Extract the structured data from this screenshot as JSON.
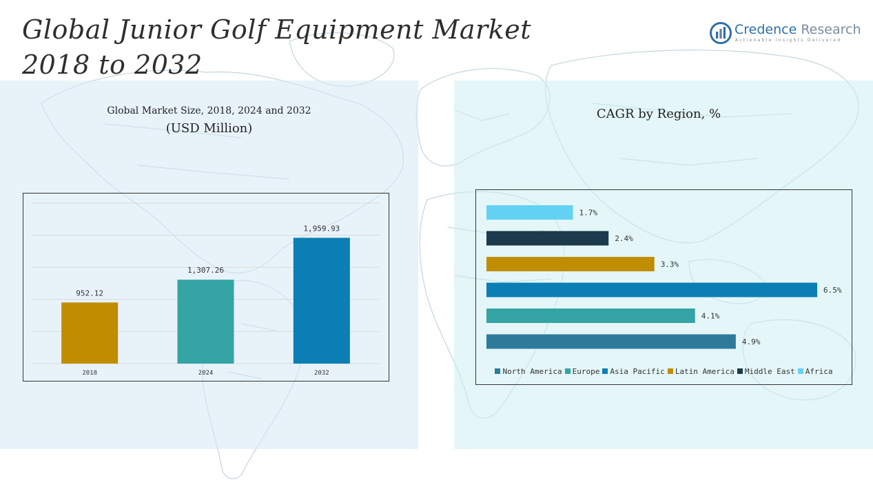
{
  "title": {
    "line1": "Global Junior Golf Equipment Market",
    "line2": "2018 to 2032"
  },
  "brand": {
    "name_part1": "Credence",
    "name_part2": "Research",
    "tagline": "Actionable Insights Delivered",
    "icon": "credence-logo-icon",
    "color": "#2e6fa7"
  },
  "colors": {
    "left_panel": "#d6e8f4",
    "right_panel": "#ceeef0",
    "north_america": "#2e7a9a",
    "europe": "#34a4a4",
    "asia_pacific": "#0b7fb4",
    "latin_america": "#c08c00",
    "middle_east": "#1b3a4b",
    "africa": "#63d2f5"
  },
  "chart_data": [
    {
      "type": "bar",
      "title": "Global Market Size, 2018, 2024 and 2032",
      "subtitle": "(USD Million)",
      "categories": [
        "2018",
        "2024",
        "2032"
      ],
      "values": [
        952.12,
        1307.26,
        1959.93
      ],
      "value_labels": [
        "952.12",
        "1,307.26",
        "1,959.93"
      ],
      "bar_colors": [
        "#c08c00",
        "#34a4a4",
        "#0b7fb4"
      ],
      "ylim": [
        0,
        2500
      ],
      "grid": true,
      "legend": "none"
    },
    {
      "type": "bar",
      "orientation": "horizontal",
      "title": "CAGR by Region, %",
      "series": [
        {
          "name": "North America",
          "value": 4.9,
          "label": "4.9%",
          "color": "#2e7a9a"
        },
        {
          "name": "Europe",
          "value": 4.1,
          "label": "4.1%",
          "color": "#34a4a4"
        },
        {
          "name": "Asia Pacific",
          "value": 6.5,
          "label": "6.5%",
          "color": "#0b7fb4"
        },
        {
          "name": "Latin America",
          "value": 3.3,
          "label": "3.3%",
          "color": "#c08c00"
        },
        {
          "name": "Middle East",
          "value": 2.4,
          "label": "2.4%",
          "color": "#1b3a4b"
        },
        {
          "name": "Africa",
          "value": 1.7,
          "label": "1.7%",
          "color": "#63d2f5"
        }
      ],
      "xlim": [
        0,
        6.5
      ],
      "grid": false,
      "legend": "bottom"
    }
  ]
}
